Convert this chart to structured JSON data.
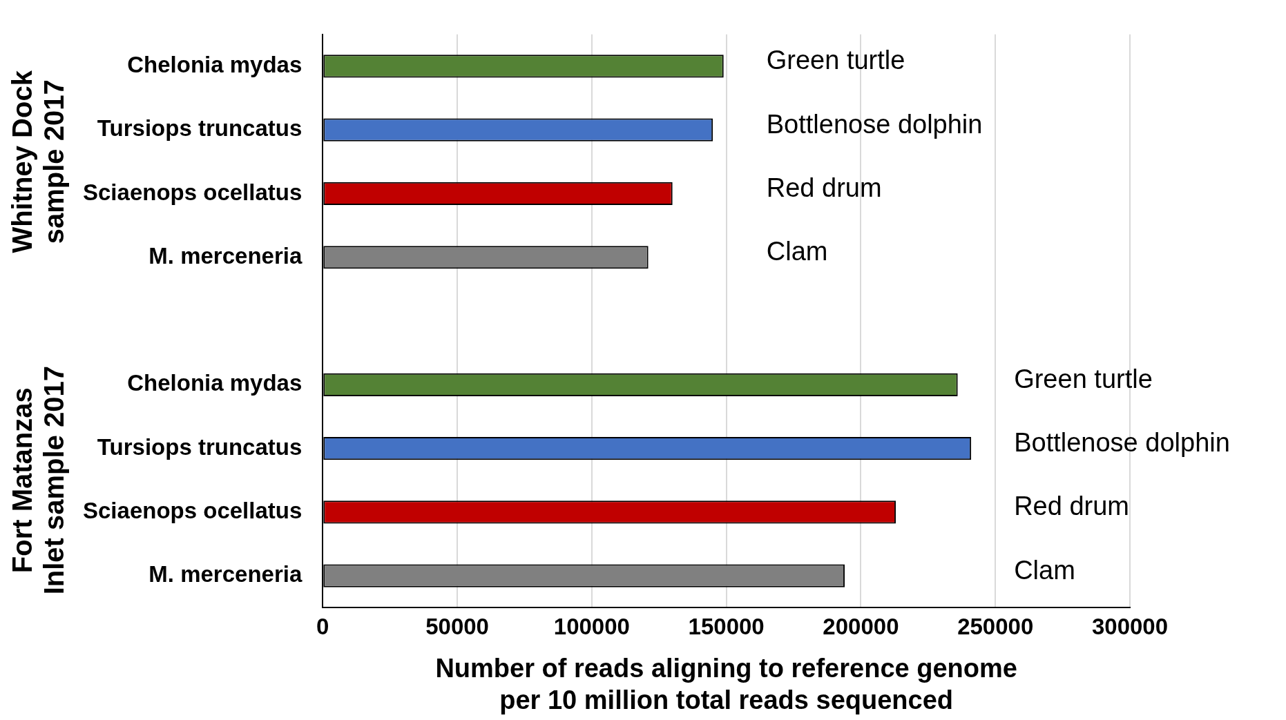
{
  "chart_data": {
    "type": "bar",
    "orientation": "horizontal",
    "xlabel": "Number of reads aligning to reference genome per 10 million total reads sequenced",
    "categories": [
      "Chelonia mydas",
      "Tursiops truncatus",
      "Sciaenops ocellatus",
      "M. merceneria",
      null,
      "Chelonia mydas",
      "Tursiops truncatus",
      "Sciaenops ocellatus",
      "M. merceneria"
    ],
    "values": [
      149000,
      145000,
      130000,
      121000,
      null,
      236000,
      241000,
      213000,
      194000
    ],
    "colors": [
      "#548235",
      "#4472c4",
      "#c00000",
      "#808080",
      null,
      "#548235",
      "#4472c4",
      "#c00000",
      "#808080"
    ],
    "annotations": [
      "Whitney Dock sample 2017",
      "Fort Matanzas Inlet sample 2017",
      "Green turtle",
      "Bottlenose dolphin",
      "Red drum",
      "Clam",
      "Green turtle",
      "Bottlenose dolphin",
      "Red drum",
      "Clam"
    ],
    "xlim": [
      0,
      300000
    ],
    "xticks": [
      0,
      50000,
      100000,
      150000,
      200000,
      250000,
      300000
    ],
    "grid": "x",
    "legend": false
  }
}
